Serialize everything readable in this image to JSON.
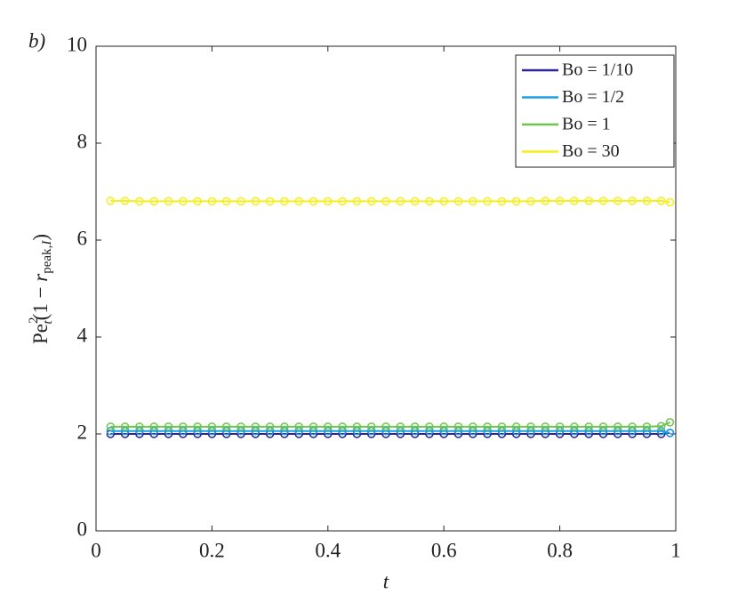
{
  "chart_data": {
    "type": "line",
    "panel_label": "b)",
    "xlabel": "t",
    "ylabel": [
      "Pe",
      "2",
      "t",
      "(1 − ",
      "r",
      "peak,",
      "I",
      ")"
    ],
    "x": [
      0.025,
      0.05,
      0.075,
      0.1,
      0.125,
      0.15,
      0.175,
      0.2,
      0.225,
      0.25,
      0.275,
      0.3,
      0.325,
      0.35,
      0.375,
      0.4,
      0.425,
      0.45,
      0.475,
      0.5,
      0.525,
      0.55,
      0.575,
      0.6,
      0.625,
      0.65,
      0.675,
      0.7,
      0.725,
      0.75,
      0.775,
      0.8,
      0.825,
      0.85,
      0.875,
      0.9,
      0.925,
      0.95,
      0.975,
      0.99
    ],
    "series": [
      {
        "name": "Bo = 1/10",
        "color": "#2d2497",
        "values": [
          2.0,
          2.0,
          2.0,
          2.0,
          2.0,
          2.0,
          2.0,
          2.0,
          2.0,
          2.0,
          2.0,
          2.0,
          2.0,
          2.0,
          2.0,
          2.0,
          2.0,
          2.0,
          2.0,
          2.0,
          2.0,
          2.0,
          2.0,
          2.0,
          2.0,
          2.0,
          2.0,
          2.0,
          2.0,
          2.0,
          2.0,
          2.0,
          2.0,
          2.0,
          2.0,
          2.0,
          2.0,
          2.0,
          2.0,
          2.02
        ]
      },
      {
        "name": "Bo = 1/2",
        "color": "#1e9fe0",
        "values": [
          2.06,
          2.06,
          2.06,
          2.06,
          2.06,
          2.06,
          2.06,
          2.06,
          2.06,
          2.06,
          2.06,
          2.06,
          2.06,
          2.06,
          2.06,
          2.06,
          2.06,
          2.06,
          2.06,
          2.06,
          2.06,
          2.06,
          2.06,
          2.06,
          2.06,
          2.06,
          2.06,
          2.06,
          2.06,
          2.06,
          2.06,
          2.06,
          2.06,
          2.06,
          2.06,
          2.06,
          2.06,
          2.06,
          2.06,
          2.02
        ]
      },
      {
        "name": "Bo = 1",
        "color": "#6dc54c",
        "values": [
          2.15,
          2.15,
          2.15,
          2.15,
          2.15,
          2.15,
          2.15,
          2.15,
          2.15,
          2.15,
          2.15,
          2.15,
          2.15,
          2.15,
          2.15,
          2.15,
          2.15,
          2.15,
          2.15,
          2.15,
          2.15,
          2.15,
          2.15,
          2.15,
          2.15,
          2.15,
          2.15,
          2.15,
          2.15,
          2.15,
          2.15,
          2.15,
          2.15,
          2.15,
          2.15,
          2.15,
          2.15,
          2.15,
          2.16,
          2.24
        ]
      },
      {
        "name": "Bo = 30",
        "color": "#f5ef1c",
        "values": [
          6.81,
          6.81,
          6.8,
          6.8,
          6.8,
          6.8,
          6.8,
          6.8,
          6.8,
          6.8,
          6.8,
          6.8,
          6.8,
          6.8,
          6.8,
          6.8,
          6.8,
          6.8,
          6.8,
          6.8,
          6.8,
          6.8,
          6.8,
          6.8,
          6.8,
          6.8,
          6.8,
          6.8,
          6.8,
          6.8,
          6.81,
          6.81,
          6.81,
          6.81,
          6.81,
          6.81,
          6.81,
          6.81,
          6.81,
          6.78
        ]
      }
    ],
    "xlim": [
      0,
      1
    ],
    "xticks": [
      0,
      0.2,
      0.4,
      0.6,
      0.8,
      1
    ],
    "ylim": [
      0,
      10
    ],
    "yticks": [
      0,
      2,
      4,
      6,
      8,
      10
    ],
    "legend": "upper right"
  }
}
